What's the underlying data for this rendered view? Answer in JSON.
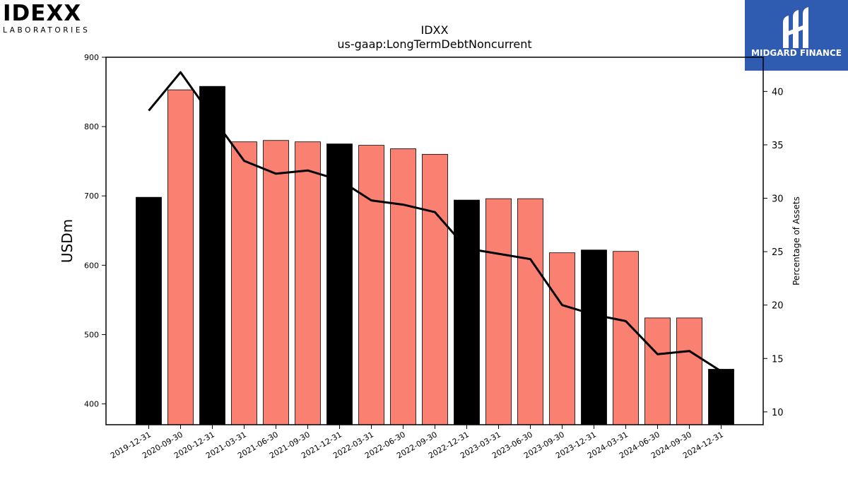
{
  "logos": {
    "left_main": "IDEXX",
    "left_sub": "LABORATORIES",
    "right_name": "MIDGARD FINANCE"
  },
  "colors": {
    "annual_bar": "#000000",
    "quarter_bar": "#fa8072",
    "line": "#000000",
    "brand_blue": "#2f5bb0"
  },
  "chart_data": {
    "type": "bar",
    "title": "IDXX",
    "subtitle": "us-gaap:LongTermDebtNoncurrent",
    "ylabel": "USDm",
    "y2label": "Percentage of Assets",
    "ylim": [
      370,
      900
    ],
    "y2lim": [
      8.8,
      43.2
    ],
    "yticks": [
      400,
      500,
      600,
      700,
      800,
      900
    ],
    "y2ticks": [
      10,
      15,
      20,
      25,
      30,
      35,
      40
    ],
    "categories": [
      "2019-12-31",
      "2020-09-30",
      "2020-12-31",
      "2021-03-31",
      "2021-06-30",
      "2021-09-30",
      "2021-12-31",
      "2022-03-31",
      "2022-06-30",
      "2022-09-30",
      "2022-12-31",
      "2023-03-31",
      "2023-06-30",
      "2023-09-30",
      "2023-12-31",
      "2024-03-31",
      "2024-06-30",
      "2024-09-30",
      "2024-12-31"
    ],
    "series": [
      {
        "values": [
          698,
          853,
          858,
          778,
          780,
          778,
          775,
          773,
          768,
          760,
          694,
          696,
          696,
          618,
          622,
          620,
          524,
          524,
          450
        ],
        "annual": [
          true,
          false,
          true,
          false,
          false,
          false,
          true,
          false,
          false,
          false,
          true,
          false,
          false,
          false,
          true,
          false,
          false,
          false,
          true
        ]
      },
      {
        "type": "line",
        "axis": "right",
        "values": [
          38.2,
          41.8,
          37.6,
          33.5,
          32.3,
          32.6,
          31.7,
          29.8,
          29.4,
          28.7,
          25.3,
          24.8,
          24.3,
          20.0,
          19.1,
          18.5,
          15.4,
          15.7,
          13.8
        ]
      }
    ]
  }
}
